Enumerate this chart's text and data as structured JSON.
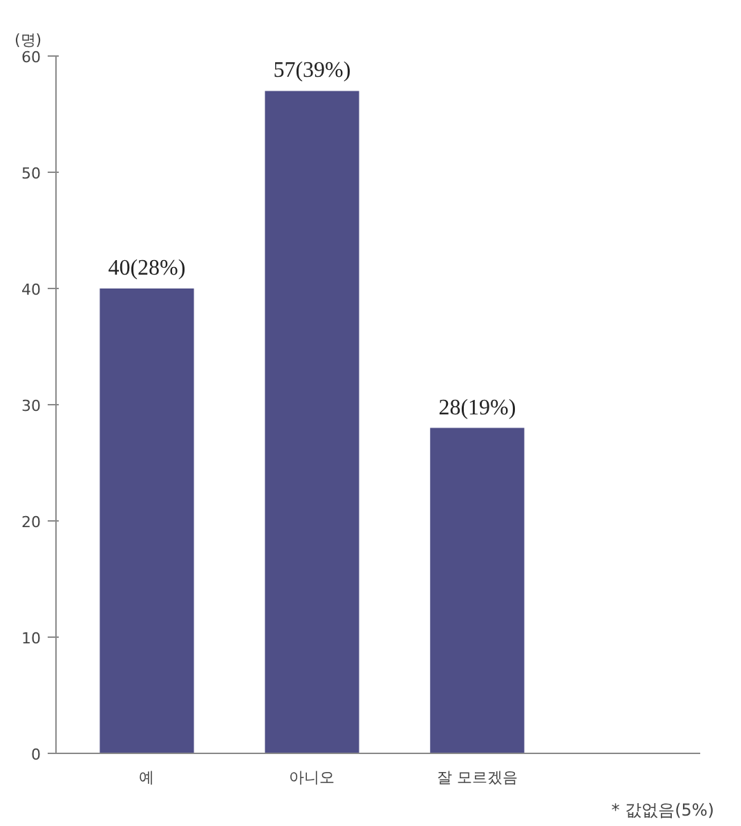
{
  "chart_data": {
    "type": "bar",
    "ylabel": "(명)",
    "categories": [
      "예",
      "아니오",
      "잘 모르겠음"
    ],
    "values": [
      40,
      57,
      28
    ],
    "value_labels": [
      "40(28%)",
      "57(39%)",
      "28(19%)"
    ],
    "color": "#4f4f87",
    "ylim": [
      0,
      60
    ],
    "yticks": [
      0,
      10,
      20,
      30,
      40,
      50,
      60
    ],
    "grid": false,
    "annotations": [
      "* 값없음(5%)"
    ]
  }
}
